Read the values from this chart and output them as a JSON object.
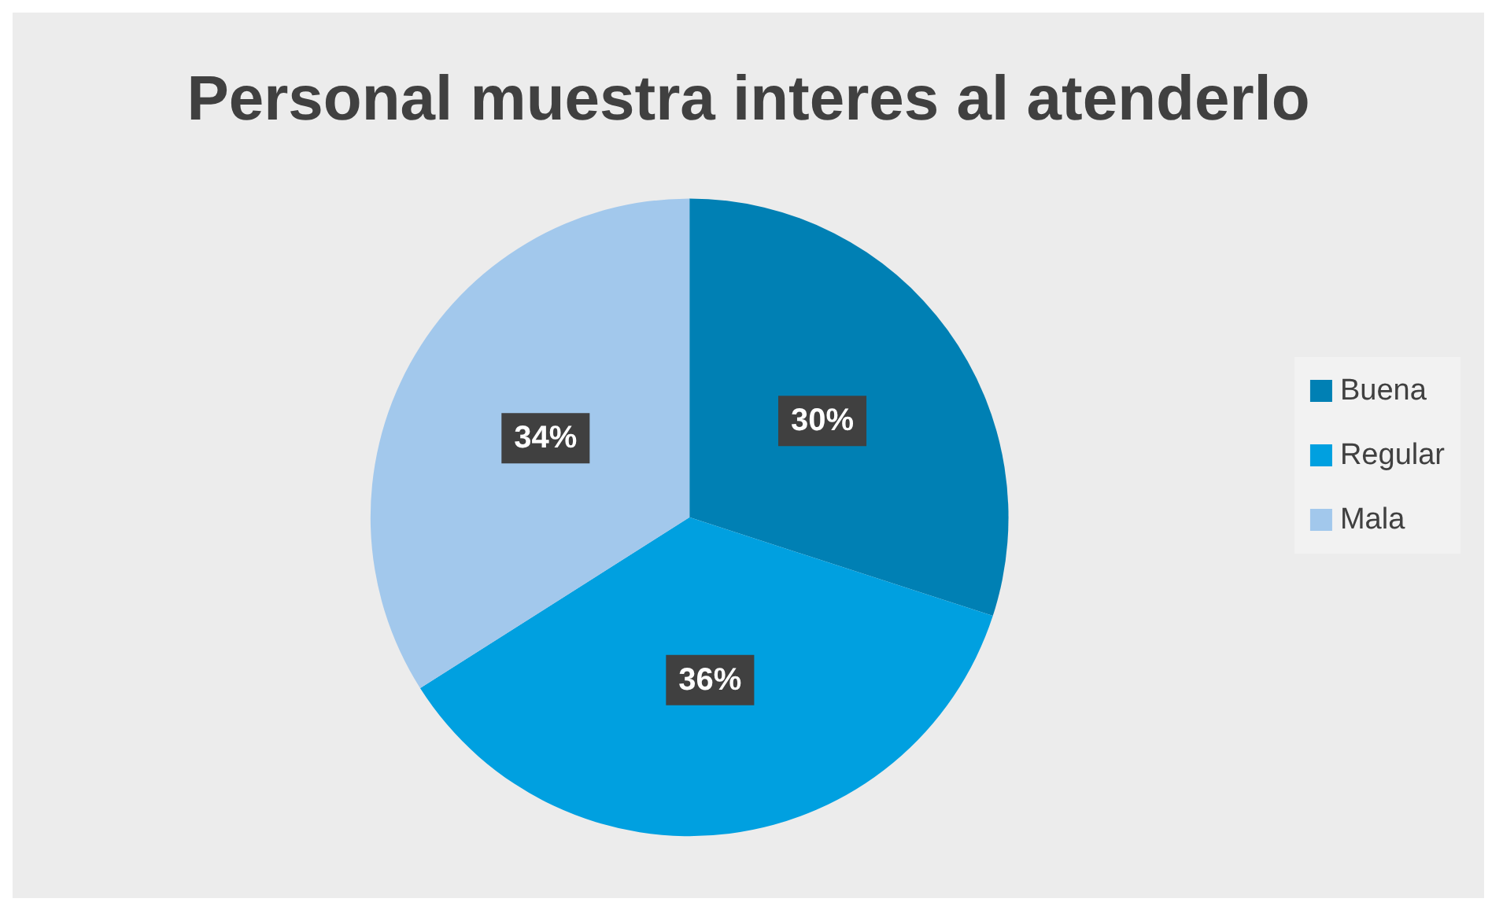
{
  "chart_data": {
    "type": "pie",
    "title": "Personal muestra interes al atenderlo",
    "categories": [
      "Buena",
      "Regular",
      "Mala"
    ],
    "values": [
      30,
      36,
      34
    ],
    "colors": [
      "#0080b4",
      "#00a0e0",
      "#a2c8ec"
    ],
    "value_labels": [
      "30%",
      "36%",
      "34%"
    ],
    "legend": "right"
  }
}
